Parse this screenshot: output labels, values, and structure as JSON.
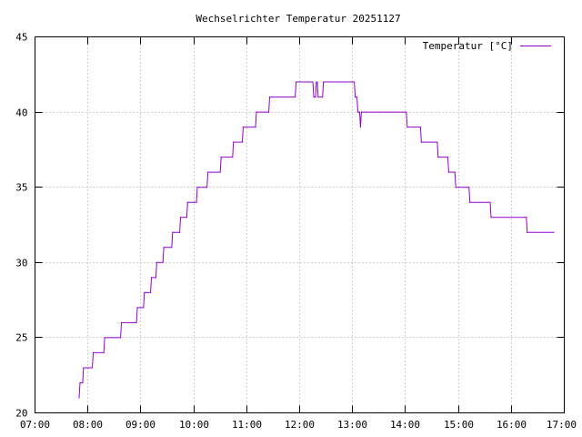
{
  "chart_data": {
    "type": "line",
    "title": "Wechselrichter Temperatur 20251127",
    "xlabel": "",
    "ylabel": "",
    "xlim": [
      "07:00",
      "17:00"
    ],
    "ylim": [
      20,
      45
    ],
    "x_ticks": [
      "07:00",
      "08:00",
      "09:00",
      "10:00",
      "11:00",
      "12:00",
      "13:00",
      "14:00",
      "15:00",
      "16:00",
      "17:00"
    ],
    "y_ticks": [
      20,
      25,
      30,
      35,
      40,
      45
    ],
    "grid": true,
    "grid_style": "dotted",
    "legend_position": "top-right",
    "series": [
      {
        "name": "Temperatur [°C]",
        "color": "#9400d3",
        "points": [
          [
            "07:50",
            21
          ],
          [
            "07:51",
            22
          ],
          [
            "07:54",
            22
          ],
          [
            "07:55",
            23
          ],
          [
            "08:05",
            23
          ],
          [
            "08:06",
            24
          ],
          [
            "08:18",
            24
          ],
          [
            "08:19",
            25
          ],
          [
            "08:37",
            25
          ],
          [
            "08:38",
            26
          ],
          [
            "08:55",
            26
          ],
          [
            "08:56",
            27
          ],
          [
            "09:03",
            27
          ],
          [
            "09:04",
            28
          ],
          [
            "09:11",
            28
          ],
          [
            "09:12",
            29
          ],
          [
            "09:17",
            29
          ],
          [
            "09:18",
            30
          ],
          [
            "09:25",
            30
          ],
          [
            "09:26",
            31
          ],
          [
            "09:35",
            31
          ],
          [
            "09:36",
            32
          ],
          [
            "09:44",
            32
          ],
          [
            "09:45",
            33
          ],
          [
            "09:52",
            33
          ],
          [
            "09:53",
            34
          ],
          [
            "10:03",
            34
          ],
          [
            "10:04",
            35
          ],
          [
            "10:15",
            35
          ],
          [
            "10:16",
            36
          ],
          [
            "10:30",
            36
          ],
          [
            "10:31",
            37
          ],
          [
            "10:44",
            37
          ],
          [
            "10:45",
            38
          ],
          [
            "10:55",
            38
          ],
          [
            "10:56",
            39
          ],
          [
            "11:10",
            39
          ],
          [
            "11:11",
            40
          ],
          [
            "11:25",
            40
          ],
          [
            "11:26",
            41
          ],
          [
            "11:55",
            41
          ],
          [
            "11:56",
            42
          ],
          [
            "12:15",
            42
          ],
          [
            "12:16",
            41
          ],
          [
            "12:18",
            41
          ],
          [
            "12:19",
            42
          ],
          [
            "12:20",
            42
          ],
          [
            "12:21",
            41
          ],
          [
            "12:26",
            41
          ],
          [
            "12:27",
            42
          ],
          [
            "13:02",
            42
          ],
          [
            "13:03",
            41
          ],
          [
            "13:05",
            41
          ],
          [
            "13:06",
            40
          ],
          [
            "13:08",
            40
          ],
          [
            "13:09",
            39
          ],
          [
            "13:10",
            40
          ],
          [
            "14:01",
            40
          ],
          [
            "14:02",
            39
          ],
          [
            "14:17",
            39
          ],
          [
            "14:18",
            38
          ],
          [
            "14:36",
            38
          ],
          [
            "14:37",
            37
          ],
          [
            "14:48",
            37
          ],
          [
            "14:49",
            36
          ],
          [
            "14:56",
            36
          ],
          [
            "14:57",
            35
          ],
          [
            "15:12",
            35
          ],
          [
            "15:13",
            34
          ],
          [
            "15:36",
            34
          ],
          [
            "15:37",
            33
          ],
          [
            "16:17",
            33
          ],
          [
            "16:18",
            32
          ],
          [
            "16:48",
            32
          ]
        ]
      }
    ]
  }
}
